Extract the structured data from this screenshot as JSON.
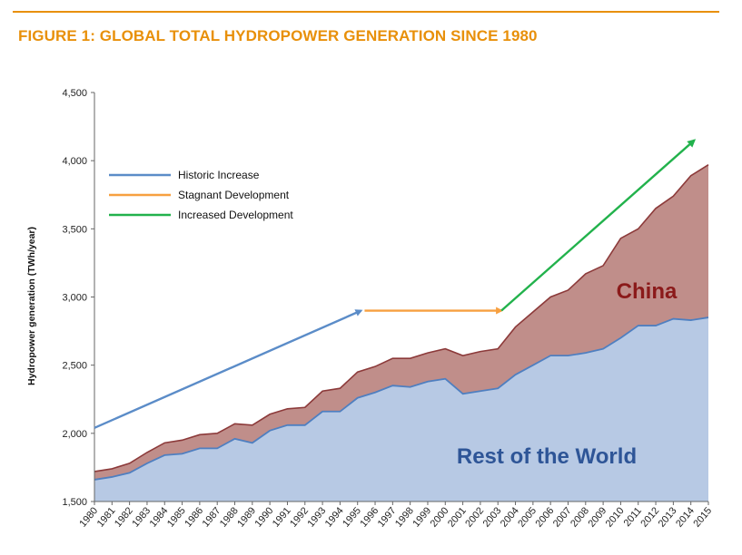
{
  "figure": {
    "title": "FIGURE 1: GLOBAL TOTAL HYDROPOWER GENERATION SINCE 1980",
    "accent_color": "#e8900a"
  },
  "chart_data": {
    "type": "area",
    "stacked": true,
    "ylabel": "Hydropower generation (TWh/year)",
    "xlabel": "",
    "ylim": [
      1500,
      4500
    ],
    "yticks": [
      1500,
      2000,
      2500,
      3000,
      3500,
      4000,
      4500
    ],
    "ytick_labels": [
      "1,500",
      "2,000",
      "2,500",
      "3,000",
      "3,500",
      "4,000",
      "4,500"
    ],
    "categories": [
      "1980",
      "1981",
      "1982",
      "1983",
      "1984",
      "1985",
      "1986",
      "1987",
      "1988",
      "1989",
      "1990",
      "1991",
      "1992",
      "1993",
      "1994",
      "1995",
      "1996",
      "1997",
      "1998",
      "1999",
      "2000",
      "2001",
      "2002",
      "2003",
      "2004",
      "2005",
      "2006",
      "2007",
      "2008",
      "2009",
      "2010",
      "2011",
      "2012",
      "2013",
      "2014",
      "2015"
    ],
    "grid": false,
    "series": [
      {
        "name": "Rest of the World",
        "color": "#b7c9e4",
        "line_color": "#4f7fc0",
        "values": [
          1660,
          1680,
          1710,
          1780,
          1840,
          1850,
          1890,
          1890,
          1960,
          1930,
          2020,
          2060,
          2060,
          2160,
          2160,
          2260,
          2300,
          2350,
          2340,
          2380,
          2400,
          2290,
          2310,
          2330,
          2430,
          2500,
          2570,
          2570,
          2590,
          2620,
          2700,
          2790,
          2790,
          2840,
          2830,
          2850
        ]
      },
      {
        "name": "China",
        "color": "#c08e8a",
        "line_color": "#8c3a3a",
        "totals": [
          1720,
          1740,
          1780,
          1860,
          1930,
          1950,
          1990,
          2000,
          2070,
          2060,
          2140,
          2180,
          2190,
          2310,
          2330,
          2450,
          2490,
          2550,
          2550,
          2590,
          2620,
          2570,
          2600,
          2620,
          2780,
          2890,
          3000,
          3050,
          3170,
          3230,
          3430,
          3500,
          3650,
          3740,
          3890,
          3970
        ]
      }
    ],
    "area_labels": [
      {
        "text": "China",
        "color": "#8b1a1a",
        "series": "China"
      },
      {
        "text": "Rest of the World",
        "color": "#2e5597",
        "series": "Rest of the World"
      }
    ],
    "trend_arrows": [
      {
        "name": "Historic Increase",
        "color": "#5b8cc8",
        "from": {
          "x": 1980,
          "y": 2040
        },
        "to": {
          "x": 1995.2,
          "y": 2900
        }
      },
      {
        "name": "Stagnant Development",
        "color": "#f7a040",
        "from": {
          "x": 1995.4,
          "y": 2900
        },
        "to": {
          "x": 2003.2,
          "y": 2900
        }
      },
      {
        "name": "Increased Development",
        "color": "#22b24c",
        "from": {
          "x": 2003.2,
          "y": 2900
        },
        "to": {
          "x": 2014.2,
          "y": 4150
        }
      }
    ],
    "legend": {
      "placement": "top-left",
      "entries": [
        "Historic Increase",
        "Stagnant Development",
        "Increased Development"
      ]
    }
  }
}
